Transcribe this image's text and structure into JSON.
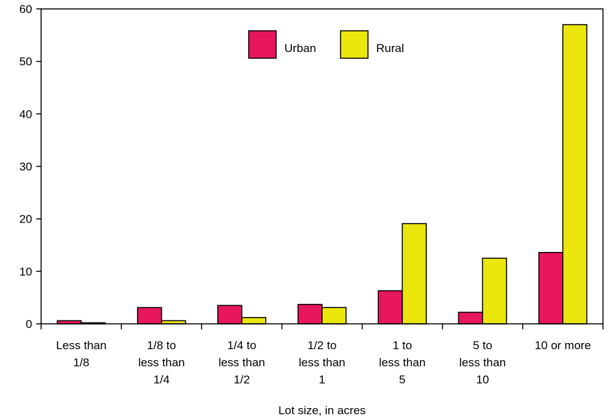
{
  "chart_data": {
    "type": "bar",
    "title": "",
    "xlabel": "Lot size, in acres",
    "ylabel": "",
    "ylim": [
      0,
      60
    ],
    "yticks": [
      0,
      10,
      20,
      30,
      40,
      50,
      60
    ],
    "grid": false,
    "legend_position": "top-center",
    "categories": [
      [
        "Less than",
        "1/8"
      ],
      [
        "1/8 to",
        "less than",
        "1/4"
      ],
      [
        "1/4 to",
        "less than",
        "1/2"
      ],
      [
        "1/2 to",
        "less than",
        "1"
      ],
      [
        "1 to",
        "less than",
        "5"
      ],
      [
        "5 to",
        "less than",
        "10"
      ],
      [
        "10 or more"
      ]
    ],
    "series": [
      {
        "name": "Urban",
        "color": "#E8175D",
        "values": [
          0.6,
          3.1,
          3.5,
          3.7,
          6.3,
          2.2,
          13.6
        ]
      },
      {
        "name": "Rural",
        "color": "#EBE60C",
        "values": [
          0.2,
          0.6,
          1.2,
          3.1,
          19.1,
          12.5,
          57.0
        ]
      }
    ]
  }
}
